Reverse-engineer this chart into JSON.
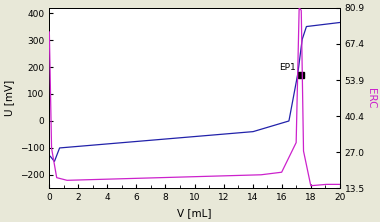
{
  "title": "",
  "xlabel": "V [mL]",
  "ylabel_left": "U [mV]",
  "ylabel_right": "ERC",
  "xlim": [
    0,
    20
  ],
  "ylim_left": [
    -250,
    420
  ],
  "ylim_right": [
    13.5,
    80.9
  ],
  "yticks_left": [
    -200,
    -100,
    0,
    100,
    200,
    300,
    400
  ],
  "yticks_right": [
    13.5,
    27,
    40.4,
    53.9,
    67.4,
    80.9
  ],
  "xticks": [
    0,
    2,
    4,
    6,
    8,
    10,
    12,
    14,
    16,
    18,
    20
  ],
  "ep1_x": 17.35,
  "ep1_y": 170,
  "ep1_label": "EP1",
  "line_color_blue": "#2222AA",
  "line_color_magenta": "#CC22CC",
  "background_color": "#e8e8d8",
  "plot_bg": "#ffffff"
}
